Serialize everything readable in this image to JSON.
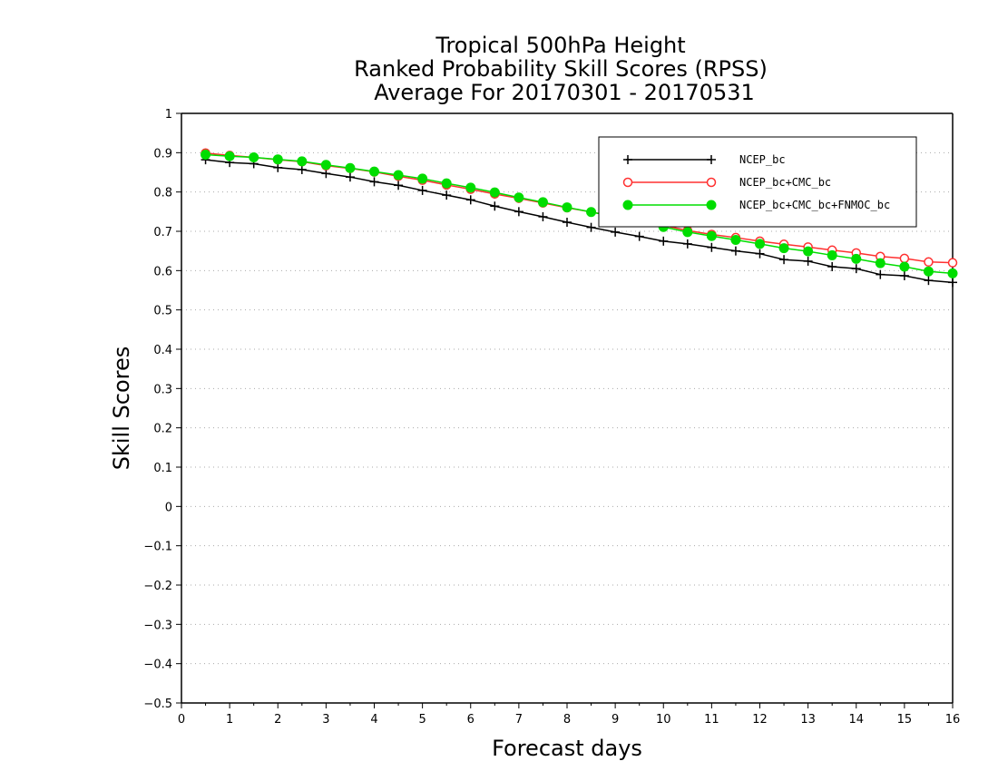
{
  "chart_data": {
    "type": "line",
    "title": [
      "Tropical 500hPa Height",
      "Ranked Probability Skill Scores (RPSS)",
      "Average For 20170301 - 20170531"
    ],
    "xlabel": "Forecast days",
    "ylabel": "Skill Scores",
    "xlim": [
      0,
      16
    ],
    "ylim": [
      -0.5,
      1
    ],
    "xticks": [
      "0",
      "1",
      "2",
      "3",
      "4",
      "5",
      "6",
      "7",
      "8",
      "9",
      "10",
      "11",
      "12",
      "13",
      "14",
      "15",
      "16"
    ],
    "yticks": [
      "−0.5",
      "−0.4",
      "−0.3",
      "−0.2",
      "−0.1",
      "0",
      "0.1",
      "0.2",
      "0.3",
      "0.4",
      "0.5",
      "0.6",
      "0.7",
      "0.8",
      "0.9",
      "1"
    ],
    "grid": "horizontal-dotted",
    "legend_position": "top-right",
    "x": [
      0.5,
      1,
      1.5,
      2,
      2.5,
      3,
      3.5,
      4,
      4.5,
      5,
      5.5,
      6,
      6.5,
      7,
      7.5,
      8,
      8.5,
      9,
      9.5,
      10,
      10.5,
      11,
      11.5,
      12,
      12.5,
      13,
      13.5,
      14,
      14.5,
      15,
      15.5,
      16
    ],
    "series": [
      {
        "name": "NCEP_bc",
        "color": "#000000",
        "marker": "plus",
        "values": [
          0.882,
          0.875,
          0.872,
          0.862,
          0.857,
          0.847,
          0.838,
          0.826,
          0.817,
          0.804,
          0.792,
          0.78,
          0.764,
          0.75,
          0.737,
          0.723,
          0.71,
          0.698,
          0.687,
          0.675,
          0.668,
          0.659,
          0.65,
          0.643,
          0.628,
          0.624,
          0.61,
          0.605,
          0.59,
          0.587,
          0.575,
          0.57
        ]
      },
      {
        "name": "NCEP_bc+CMC_bc",
        "color": "#ff3030",
        "marker": "open-circle",
        "values": [
          0.899,
          0.893,
          0.888,
          0.882,
          0.877,
          0.867,
          0.86,
          0.851,
          0.84,
          0.83,
          0.818,
          0.807,
          0.795,
          0.784,
          0.772,
          0.76,
          0.749,
          0.738,
          0.727,
          0.715,
          0.702,
          0.692,
          0.684,
          0.675,
          0.667,
          0.66,
          0.652,
          0.645,
          0.636,
          0.631,
          0.622,
          0.62
        ]
      },
      {
        "name": "NCEP_bc+CMC_bc+FNMOC_bc",
        "color": "#00dd00",
        "marker": "filled-circle",
        "values": [
          0.895,
          0.891,
          0.888,
          0.883,
          0.878,
          0.869,
          0.861,
          0.852,
          0.843,
          0.834,
          0.822,
          0.811,
          0.799,
          0.786,
          0.774,
          0.761,
          0.749,
          0.737,
          0.723,
          0.711,
          0.698,
          0.688,
          0.678,
          0.668,
          0.657,
          0.649,
          0.639,
          0.63,
          0.619,
          0.61,
          0.598,
          0.593
        ]
      }
    ]
  }
}
